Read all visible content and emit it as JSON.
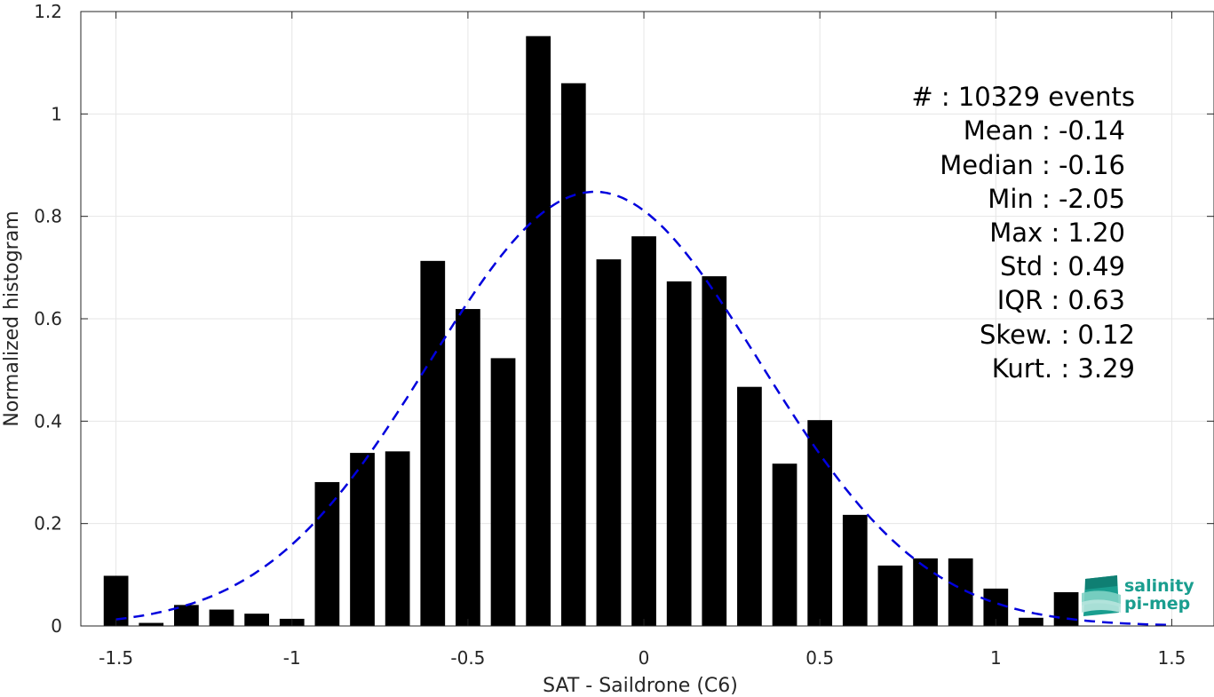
{
  "chart_data": {
    "type": "bar",
    "xlabel": "SAT - Saildrone (C6)",
    "ylabel": "Normalized histogram",
    "xlim": [
      -1.6,
      1.62
    ],
    "ylim": [
      0,
      1.2
    ],
    "xticks": [
      -1.5,
      -1,
      -0.5,
      0,
      0.5,
      1,
      1.5
    ],
    "xtick_labels": [
      "-1.5",
      "-1",
      "-0.5",
      "0",
      "0.5",
      "1",
      "1.5"
    ],
    "yticks": [
      0,
      0.2,
      0.4,
      0.6,
      0.8,
      1,
      1.2
    ],
    "ytick_labels": [
      "0",
      "0.2",
      "0.4",
      "0.6",
      "0.8",
      "1",
      "1.2"
    ],
    "grid": true,
    "bar_color": "#000000",
    "bar_width": 0.07,
    "bins": [
      -1.5,
      -1.4,
      -1.3,
      -1.2,
      -1.1,
      -1.0,
      -0.9,
      -0.8,
      -0.7,
      -0.6,
      -0.5,
      -0.4,
      -0.3,
      -0.2,
      -0.1,
      0.0,
      0.1,
      0.2,
      0.3,
      0.4,
      0.5,
      0.6,
      0.7,
      0.8,
      0.9,
      1.0,
      1.1,
      1.2
    ],
    "values": [
      0.098,
      0.006,
      0.041,
      0.032,
      0.024,
      0.014,
      0.281,
      0.338,
      0.341,
      0.713,
      0.619,
      0.523,
      1.152,
      1.06,
      0.716,
      0.761,
      0.673,
      0.683,
      0.467,
      0.317,
      0.402,
      0.217,
      0.118,
      0.132,
      0.132,
      0.073,
      0.016,
      0.066
    ],
    "fit_curve": {
      "color": "#0000dd",
      "style": "dashed",
      "mean": -0.14,
      "std": 0.47,
      "x_range": [
        -1.5,
        1.5
      ],
      "peak": 0.848
    },
    "stats_lines": [
      "#  : 10329 events",
      "Mean : -0.14",
      "Median : -0.16",
      "Min : -2.05",
      "Max : 1.20",
      "Std : 0.49",
      "IQR : 0.63",
      "Skew. : 0.12",
      "Kurt. : 3.29"
    ]
  },
  "logo": {
    "line1": "salinity",
    "line2": "pi-mep",
    "color": "#1a9e8f"
  }
}
